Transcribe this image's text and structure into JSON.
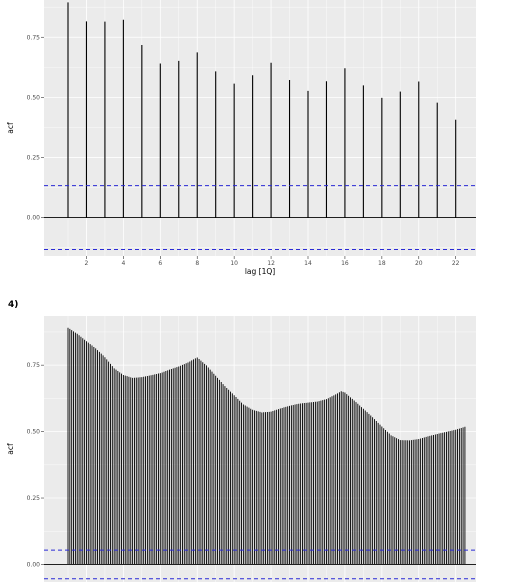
{
  "panel4_tag": "4)",
  "colors": {
    "panel_bg": "#ebebeb",
    "grid_major": "#ffffff",
    "bar": "#000000",
    "ci_line": "#2b2bd6",
    "zero_line": "#000000"
  },
  "chart_data": [
    {
      "type": "bar",
      "subtype": "acf",
      "xlabel": "lag [1Q]",
      "ylabel": "acf",
      "x_ticks": [
        2,
        4,
        6,
        8,
        10,
        12,
        14,
        16,
        18,
        20,
        22
      ],
      "y_ticks": [
        0.0,
        0.25,
        0.5,
        0.75
      ],
      "y_tick_labels": [
        "0.00",
        "0.25",
        "0.50",
        "0.75"
      ],
      "x_tick_labels": [
        "2",
        "4",
        "6",
        "8",
        "10",
        "12",
        "14",
        "16",
        "18",
        "20",
        "22"
      ],
      "xlim": [
        -0.3,
        23.1
      ],
      "ylim": [
        -0.16,
        0.905
      ],
      "ci": 0.133,
      "grid": true,
      "lags": [
        1,
        2,
        3,
        4,
        5,
        6,
        7,
        8,
        9,
        10,
        11,
        12,
        13,
        14,
        15,
        16,
        17,
        18,
        19,
        20,
        21,
        22
      ],
      "values": [
        0.895,
        0.816,
        0.815,
        0.823,
        0.718,
        0.641,
        0.652,
        0.687,
        0.608,
        0.557,
        0.592,
        0.644,
        0.572,
        0.527,
        0.567,
        0.621,
        0.55,
        0.498,
        0.524,
        0.566,
        0.478,
        0.407
      ]
    },
    {
      "type": "bar",
      "subtype": "acf",
      "xlabel": "",
      "ylabel": "acf",
      "y_ticks": [
        0.0,
        0.25,
        0.5,
        0.75
      ],
      "y_tick_labels": [
        "0.00",
        "0.25",
        "0.50",
        "0.75"
      ],
      "x_tick_positions": [
        2,
        4,
        6,
        8,
        10,
        12,
        14,
        16,
        18,
        20,
        22
      ],
      "xlim": [
        -0.3,
        23.1
      ],
      "ylim": [
        -0.066,
        0.935
      ],
      "ci": 0.054,
      "grid": true,
      "lag_start": 1.0,
      "lag_step": 0.1,
      "curve_knots": [
        [
          1.0,
          0.891
        ],
        [
          1.5,
          0.868
        ],
        [
          2.0,
          0.84
        ],
        [
          2.5,
          0.813
        ],
        [
          3.0,
          0.78
        ],
        [
          3.5,
          0.738
        ],
        [
          4.0,
          0.713
        ],
        [
          4.5,
          0.702
        ],
        [
          5.0,
          0.705
        ],
        [
          5.5,
          0.712
        ],
        [
          6.0,
          0.72
        ],
        [
          6.5,
          0.733
        ],
        [
          7.0,
          0.745
        ],
        [
          7.5,
          0.76
        ],
        [
          7.8,
          0.772
        ],
        [
          8.0,
          0.779
        ],
        [
          8.5,
          0.749
        ],
        [
          9.0,
          0.71
        ],
        [
          9.5,
          0.671
        ],
        [
          10.0,
          0.637
        ],
        [
          10.5,
          0.602
        ],
        [
          11.0,
          0.582
        ],
        [
          11.5,
          0.572
        ],
        [
          12.0,
          0.575
        ],
        [
          12.5,
          0.587
        ],
        [
          13.0,
          0.597
        ],
        [
          13.5,
          0.605
        ],
        [
          14.0,
          0.609
        ],
        [
          14.5,
          0.613
        ],
        [
          15.0,
          0.622
        ],
        [
          15.5,
          0.64
        ],
        [
          15.8,
          0.652
        ],
        [
          16.0,
          0.647
        ],
        [
          16.5,
          0.617
        ],
        [
          17.0,
          0.586
        ],
        [
          17.5,
          0.554
        ],
        [
          18.0,
          0.519
        ],
        [
          18.5,
          0.486
        ],
        [
          19.0,
          0.468
        ],
        [
          19.5,
          0.467
        ],
        [
          20.0,
          0.472
        ],
        [
          20.5,
          0.482
        ],
        [
          21.0,
          0.491
        ],
        [
          21.5,
          0.499
        ],
        [
          22.0,
          0.507
        ],
        [
          22.5,
          0.518
        ]
      ]
    }
  ]
}
